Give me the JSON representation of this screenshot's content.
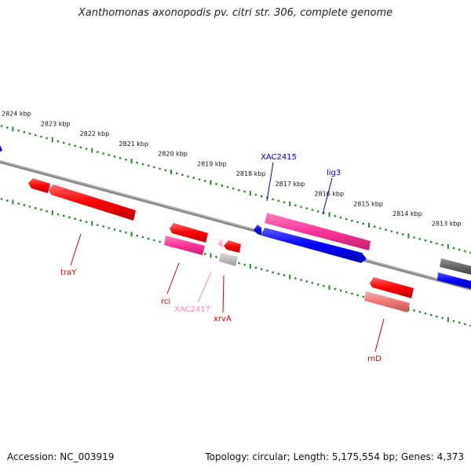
{
  "title": "Xanthomonas axonopodis pv. citri str. 306, complete genome",
  "footer": {
    "accession": "Accession: NC_003919",
    "summary": "Topology: circular; Length: 5,175,554 bp; Genes: 4,373"
  },
  "kbp_labels": [
    {
      "kbp": 2824,
      "text": "2824 kbp"
    },
    {
      "kbp": 2823,
      "text": "2823 kbp"
    },
    {
      "kbp": 2822,
      "text": "2822 kbp"
    },
    {
      "kbp": 2821,
      "text": "2821 kbp"
    },
    {
      "kbp": 2820,
      "text": "2820 kbp"
    },
    {
      "kbp": 2819,
      "text": "2819 kbp"
    },
    {
      "kbp": 2818,
      "text": "2818 kbp"
    },
    {
      "kbp": 2817,
      "text": "2817 kbp"
    },
    {
      "kbp": 2816,
      "text": "2816 kbp"
    },
    {
      "kbp": 2815,
      "text": "2815 kbp"
    },
    {
      "kbp": 2814,
      "text": "2814 kbp"
    },
    {
      "kbp": 2813,
      "text": "2813 kbp"
    }
  ],
  "gene_labels": [
    {
      "name": "XAC2415",
      "color": "#0000cc"
    },
    {
      "name": "lig3",
      "color": "#0000cc"
    },
    {
      "name": "traY",
      "color": "#cc0000"
    },
    {
      "name": "rci",
      "color": "#cc0000"
    },
    {
      "name": "XAC2417",
      "color": "#ff88bb"
    },
    {
      "name": "xrvA",
      "color": "#cc0000"
    },
    {
      "name": "rnD",
      "color": "#cc0000"
    }
  ],
  "colors": {
    "backbone": "#888888",
    "tick": "#228b22",
    "gene_red": "#ff0000",
    "gene_pink": "#ff3399",
    "gene_blue": "#0000ff",
    "gene_gray": "#666666",
    "gene_lightred": "#ee7777"
  }
}
